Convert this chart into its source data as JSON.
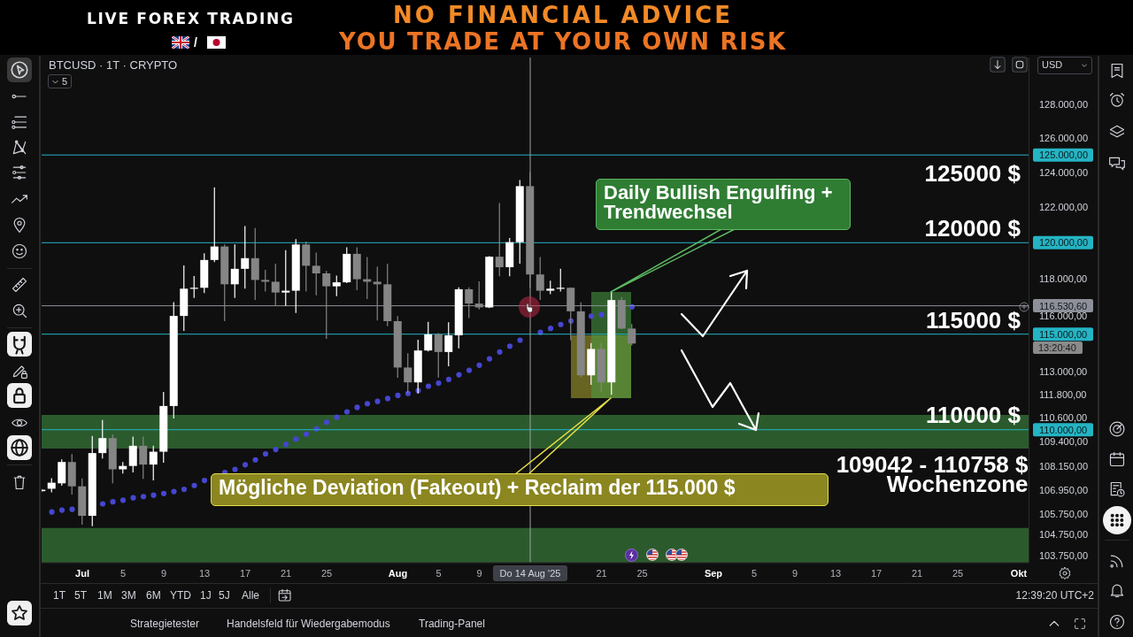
{
  "chart_data": {
    "type": "candlestick",
    "title": "BTCUSD · 1T · CRYPTO",
    "x": [
      "2025-06-27",
      "2025-06-28",
      "2025-06-29",
      "2025-06-30",
      "2025-07-01",
      "2025-07-02",
      "2025-07-03",
      "2025-07-04",
      "2025-07-05",
      "2025-07-06",
      "2025-07-07",
      "2025-07-08",
      "2025-07-09",
      "2025-07-10",
      "2025-07-11",
      "2025-07-12",
      "2025-07-13",
      "2025-07-14",
      "2025-07-15",
      "2025-07-16",
      "2025-07-17",
      "2025-07-18",
      "2025-07-19",
      "2025-07-20",
      "2025-07-21",
      "2025-07-22",
      "2025-07-23",
      "2025-07-24",
      "2025-07-25",
      "2025-07-26",
      "2025-07-27",
      "2025-07-28",
      "2025-07-29",
      "2025-07-30",
      "2025-07-31",
      "2025-08-01",
      "2025-08-02",
      "2025-08-03",
      "2025-08-04",
      "2025-08-05",
      "2025-08-06",
      "2025-08-07",
      "2025-08-08",
      "2025-08-09",
      "2025-08-10",
      "2025-08-11",
      "2025-08-12",
      "2025-08-13",
      "2025-08-14",
      "2025-08-15",
      "2025-08-16",
      "2025-08-17",
      "2025-08-18",
      "2025-08-19",
      "2025-08-20",
      "2025-08-21",
      "2025-08-22",
      "2025-08-23",
      "2025-08-24"
    ],
    "ohlc": [
      [
        106900,
        107020,
        106850,
        106970
      ],
      [
        107020,
        107550,
        106840,
        107320
      ],
      [
        107290,
        108490,
        107170,
        108360
      ],
      [
        108360,
        108760,
        106730,
        107140
      ],
      [
        107140,
        107540,
        105250,
        105680
      ],
      [
        105680,
        109680,
        105170,
        108810
      ],
      [
        108810,
        110500,
        108540,
        109570
      ],
      [
        109570,
        109760,
        107290,
        107990
      ],
      [
        107990,
        108360,
        107780,
        108160
      ],
      [
        108160,
        109650,
        107830,
        109180
      ],
      [
        109180,
        109650,
        107510,
        108230
      ],
      [
        108230,
        109180,
        107440,
        108880
      ],
      [
        108880,
        111950,
        108320,
        111220
      ],
      [
        111220,
        116730,
        110580,
        115980
      ],
      [
        115980,
        118740,
        115180,
        117460
      ],
      [
        117460,
        118150,
        116960,
        117510
      ],
      [
        117510,
        119410,
        117220,
        119040
      ],
      [
        119040,
        123130,
        118920,
        119790
      ],
      [
        119790,
        119900,
        115700,
        117700
      ],
      [
        117700,
        119900,
        116950,
        118550
      ],
      [
        118550,
        120930,
        117460,
        119140
      ],
      [
        119140,
        120820,
        116850,
        117940
      ],
      [
        117940,
        118500,
        117300,
        117840
      ],
      [
        117840,
        118840,
        116520,
        117250
      ],
      [
        117250,
        119580,
        116520,
        117350
      ],
      [
        117350,
        120200,
        116140,
        119900
      ],
      [
        119900,
        120070,
        117300,
        118720
      ],
      [
        118720,
        119450,
        117100,
        118300
      ],
      [
        118300,
        118430,
        114750,
        117590
      ],
      [
        117590,
        118180,
        117050,
        117810
      ],
      [
        117810,
        119740,
        117760,
        119380
      ],
      [
        119380,
        119740,
        117380,
        117980
      ],
      [
        117980,
        119200,
        116900,
        117840
      ],
      [
        117840,
        118660,
        115730,
        117700
      ],
      [
        117700,
        118820,
        115430,
        115700
      ],
      [
        115700,
        115970,
        112690,
        113230
      ],
      [
        113230,
        113980,
        111870,
        112450
      ],
      [
        112450,
        114700,
        111870,
        114130
      ],
      [
        114130,
        115660,
        114080,
        114990
      ],
      [
        114990,
        115060,
        112700,
        114050
      ],
      [
        114050,
        115640,
        113300,
        114940
      ],
      [
        114940,
        117540,
        114240,
        117430
      ],
      [
        117430,
        117540,
        115860,
        116650
      ],
      [
        116650,
        117860,
        116330,
        116440
      ],
      [
        116440,
        119250,
        116400,
        119220
      ],
      [
        119220,
        122230,
        118140,
        118640
      ],
      [
        118640,
        120270,
        118140,
        120030
      ],
      [
        120030,
        123550,
        118840,
        123200
      ],
      [
        123200,
        124000,
        117500,
        118240
      ],
      [
        118240,
        119200,
        116850,
        117350
      ],
      [
        117350,
        117900,
        117160,
        117460
      ],
      [
        117460,
        118550,
        117300,
        117510
      ],
      [
        117510,
        117540,
        114670,
        116230
      ],
      [
        116230,
        116710,
        112710,
        112820
      ],
      [
        112820,
        114530,
        112320,
        114210
      ],
      [
        114210,
        114530,
        111950,
        112450
      ],
      [
        112450,
        117300,
        111800,
        116840
      ],
      [
        116840,
        117000,
        115270,
        115300
      ],
      [
        115300,
        115540,
        114400,
        114500
      ]
    ],
    "colors": [
      "#ffffff",
      "#ffffff",
      "#ffffff",
      "#858585",
      "#858585",
      "#ffffff",
      "#ffffff",
      "#858585",
      "#ffffff",
      "#ffffff",
      "#858585",
      "#ffffff",
      "#ffffff",
      "#ffffff",
      "#ffffff",
      "#ffffff",
      "#ffffff",
      "#ffffff",
      "#858585",
      "#ffffff",
      "#ffffff",
      "#858585",
      "#858585",
      "#858585",
      "#ffffff",
      "#ffffff",
      "#858585",
      "#858585",
      "#858585",
      "#ffffff",
      "#ffffff",
      "#858585",
      "#858585",
      "#858585",
      "#858585",
      "#858585",
      "#858585",
      "#ffffff",
      "#ffffff",
      "#858585",
      "#ffffff",
      "#ffffff",
      "#858585",
      "#858585",
      "#ffffff",
      "#858585",
      "#ffffff",
      "#ffffff",
      "#858585",
      "#858585",
      "#ffffff",
      "#ffffff",
      "#858585",
      "#858585",
      "#ffffff",
      "#858585",
      "#ffffff",
      "#858585",
      "#858585"
    ],
    "series": [
      {
        "type": "scatter",
        "color": "#4646d0",
        "x": [
          "2025-06-28",
          "2025-06-29",
          "2025-06-30",
          "2025-07-03",
          "2025-07-04",
          "2025-07-05",
          "2025-07-06",
          "2025-07-07",
          "2025-07-08",
          "2025-07-09",
          "2025-07-10",
          "2025-07-11",
          "2025-07-12",
          "2025-07-13",
          "2025-07-15",
          "2025-07-16",
          "2025-07-17",
          "2025-07-18",
          "2025-07-19",
          "2025-07-20",
          "2025-07-21",
          "2025-07-22",
          "2025-07-23",
          "2025-07-24",
          "2025-07-25",
          "2025-07-26",
          "2025-07-27",
          "2025-07-28",
          "2025-07-29",
          "2025-07-30",
          "2025-07-31",
          "2025-08-01",
          "2025-08-02",
          "2025-08-03",
          "2025-08-04",
          "2025-08-05",
          "2025-08-06",
          "2025-08-07",
          "2025-08-08",
          "2025-08-09",
          "2025-08-10",
          "2025-08-11",
          "2025-08-12",
          "2025-08-13",
          "2025-08-15",
          "2025-08-16",
          "2025-08-17",
          "2025-08-18",
          "2025-08-20",
          "2025-08-21",
          "2025-08-24"
        ],
        "values": [
          105870,
          105960,
          106000,
          106270,
          106370,
          106450,
          106570,
          106630,
          106700,
          106780,
          106880,
          106990,
          107180,
          107430,
          107830,
          107990,
          108220,
          108470,
          108770,
          108990,
          109250,
          109520,
          109770,
          110040,
          110380,
          110640,
          110920,
          111150,
          111340,
          111460,
          111610,
          111770,
          111870,
          112020,
          112250,
          112410,
          112600,
          112850,
          113080,
          113350,
          113690,
          114050,
          114360,
          114680,
          115100,
          115310,
          115520,
          115710,
          115970,
          116050,
          116470
        ]
      }
    ],
    "marker": "circle",
    "xlim": [
      "2025-06-27",
      "2025-10-02"
    ],
    "xticks": [
      {
        "value": "2025-07-01",
        "label": "Jul"
      },
      {
        "value": "2025-07-05",
        "label": "5"
      },
      {
        "value": "2025-07-09",
        "label": "9"
      },
      {
        "value": "2025-07-13",
        "label": "13"
      },
      {
        "value": "2025-07-17",
        "label": "17"
      },
      {
        "value": "2025-07-21",
        "label": "21"
      },
      {
        "value": "2025-07-25",
        "label": "25"
      },
      {
        "value": "2025-08-01",
        "label": "Aug"
      },
      {
        "value": "2025-08-05",
        "label": "5"
      },
      {
        "value": "2025-08-09",
        "label": "9"
      },
      {
        "value": "2025-08-21",
        "label": "21"
      },
      {
        "value": "2025-08-25",
        "label": "25"
      },
      {
        "value": "2025-09-01",
        "label": "Sep"
      },
      {
        "value": "2025-09-05",
        "label": "5"
      },
      {
        "value": "2025-09-09",
        "label": "9"
      },
      {
        "value": "2025-09-13",
        "label": "13"
      },
      {
        "value": "2025-09-17",
        "label": "17"
      },
      {
        "value": "2025-09-21",
        "label": "21"
      },
      {
        "value": "2025-09-25",
        "label": "25"
      },
      {
        "value": "2025-10-01",
        "label": "Okt"
      }
    ],
    "ylim": [
      103400,
      130800
    ],
    "yticks": [
      {
        "value": 128000,
        "label": "128.000,00"
      },
      {
        "value": 126000,
        "label": "126.000,00"
      },
      {
        "value": 124000,
        "label": "124.000,00"
      },
      {
        "value": 122000,
        "label": "122.000,00"
      },
      {
        "value": 118000,
        "label": "118.000,00"
      },
      {
        "value": 116000,
        "label": "116.000,00"
      },
      {
        "value": 113000,
        "label": "113.000,00"
      },
      {
        "value": 111800,
        "label": "111.800,00"
      },
      {
        "value": 110600,
        "label": "110.600,00"
      },
      {
        "value": 109400,
        "label": "109.400,00"
      },
      {
        "value": 108150,
        "label": "108.150,00"
      },
      {
        "value": 106950,
        "label": "106.950,00"
      },
      {
        "value": 105750,
        "label": "105.750,00"
      },
      {
        "value": 104750,
        "label": "104.750,00"
      },
      {
        "value": 103750,
        "label": "103.750,00"
      }
    ],
    "log": true,
    "bands": [
      {
        "axis": "y",
        "from": 109042,
        "to": 110758,
        "label": "109042 - 110758 $ Wochenzone",
        "color": "#2b5b2c"
      },
      {
        "axis": "y",
        "from": 103400,
        "to": 105080,
        "color": "#2b5b2c"
      }
    ],
    "ref_lines": [
      {
        "axis": "y",
        "value": 125000,
        "label": "125.000,00",
        "color": "#24b4c4"
      },
      {
        "axis": "y",
        "value": 120000,
        "label": "120.000,00",
        "color": "#24b4c4"
      },
      {
        "axis": "y",
        "value": 115000,
        "label": "115.000,00",
        "color": "#24b4c4"
      },
      {
        "axis": "y",
        "value": 110000,
        "label": "110.000,00",
        "color": "#24b4c4"
      },
      {
        "axis": "y",
        "value": 116530.6,
        "label": "116.530,60",
        "color": "#8e9099"
      },
      {
        "axis": "x",
        "value": "2025-08-14",
        "label": "Do 14 Aug '25",
        "color": "#a0a2aa"
      }
    ],
    "annotations": [
      "LIVE FOREX TRADING",
      "/",
      "NO FINANCIAL ADVICE",
      "YOU TRADE AT YOUR OWN RISK",
      "5",
      "USD",
      "125000 $",
      "120000 $",
      "115000 $",
      "110000 $",
      "13:20:40",
      "Daily Bullish Engulfing + Trendwechsel",
      "Mögliche Deviation (Fakeout) + Reclaim der 115.000 $",
      "1T",
      "5T",
      "1M",
      "3M",
      "6M",
      "YTD",
      "1J",
      "5J",
      "Alle",
      "12:39:20 UTC+2",
      "Strategietester",
      "Handelsfeld für Wiedergabemodus",
      "Trading-Panel"
    ]
  }
}
